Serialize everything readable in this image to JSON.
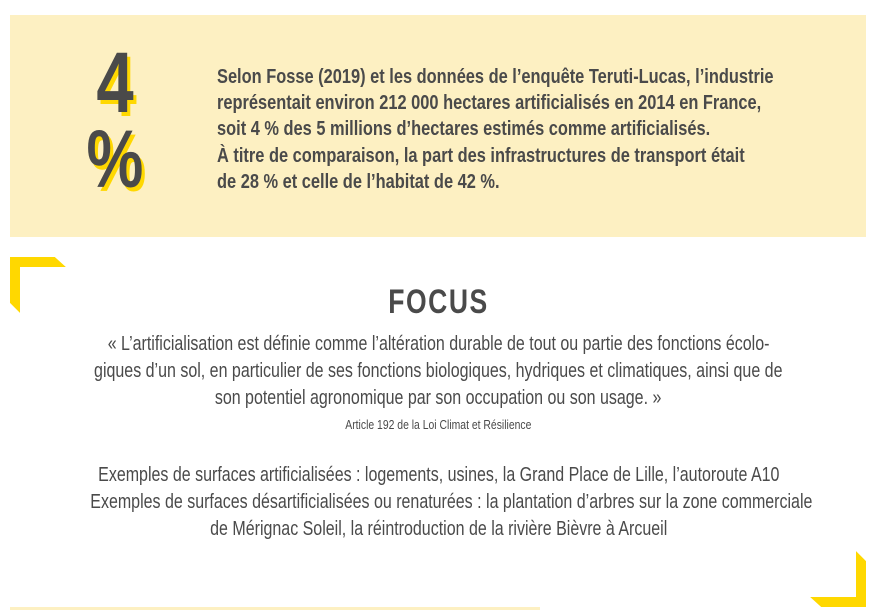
{
  "stat": {
    "number": "4",
    "unit": "%",
    "lines": [
      "Selon Fosse (2019) et les données de l’enquête Teruti-Lucas, l’industrie",
      "représentait environ 212 000 hectares artificialisés en 2014 en France,",
      "soit 4 % des 5 millions d’hectares estimés comme artificialisés.",
      "À titre de comparaison, la part des infrastructures de transport était",
      "de 28 % et celle de l’habitat de 42 %."
    ]
  },
  "focus": {
    "title": "FOCUS",
    "quote_lines": [
      "« L’artificialisation est définie comme l’altération durable de tout ou partie des fonctions écolo-",
      "giques d’un sol, en particulier de ses fonctions biologiques, hydriques et climatiques, ainsi que de",
      "son potentiel agronomique par son occupation ou son usage. »"
    ],
    "source": "Article 192 de la Loi Climat et Résilience",
    "examples": [
      "Exemples de surfaces artificialisées : logements, usines, la Grand Place de Lille, l’autoroute A10",
      "Exemples de surfaces désartificialisées ou renaturées : la plantation d’arbres sur la zone commerciale",
      "de Mérignac Soleil, la réintroduction de la rivière Bièvre à Arcueil"
    ]
  },
  "colors": {
    "accent": "#ffd800",
    "panel": "#fdf0c2",
    "text": "#4a4a4a"
  }
}
